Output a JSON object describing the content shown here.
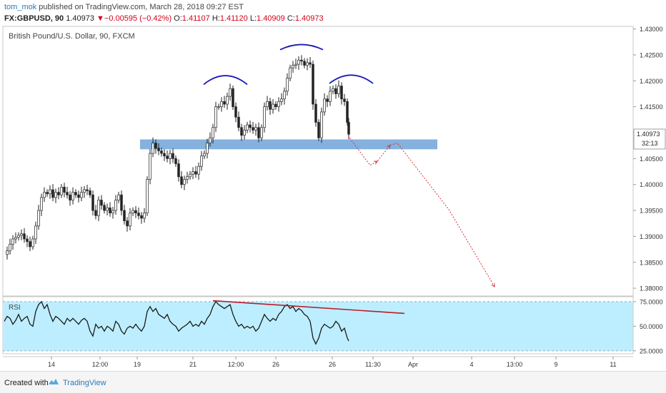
{
  "header": {
    "user": "tom_mok",
    "published_text": " published on TradingView.com, March 28, 2018 09:27 EST",
    "symbol": "FX:GBPUSD, 90",
    "last": "1.40973",
    "change_arrow": "▼",
    "change": "−0.00595 (−0.42%)",
    "open_label": "O:",
    "open": "1.41107",
    "high_label": "H:",
    "high": "1.41120",
    "low_label": "L:",
    "low": "1.40909",
    "close_label": "C:",
    "close": "1.40973"
  },
  "main_title": "British Pound/U.S. Dollar, 90, FXCM",
  "rsi_label": "RSI",
  "price_badge": "1.40973",
  "countdown": "32:13",
  "footer": {
    "created": "Created with",
    "brand": "TradingView"
  },
  "colors": {
    "support_zone": "#6fa3d8",
    "head_shoulders_arc": "#1a1ab8",
    "projection": "#e0303a",
    "rsi_fill": "#bdeeff",
    "divergence_line": "#b81c2a"
  },
  "chart_data": [
    {
      "type": "candlestick",
      "title": "British Pound/U.S. Dollar, 90, FXCM",
      "y_ticks": [
        "1.43000",
        "1.42500",
        "1.42000",
        "1.41500",
        "1.41000",
        "1.40500",
        "1.40000",
        "1.39500",
        "1.39000",
        "1.38500",
        "1.38000"
      ],
      "ylim": [
        1.3785,
        1.4305
      ],
      "x_ticks": [
        "14",
        "12:00",
        "19",
        "21",
        "12:00",
        "26",
        "26",
        "11:30",
        "Apr",
        "4",
        "13:00",
        "9",
        "11"
      ],
      "x_tick_values": [
        72,
        140,
        192,
        270,
        330,
        386,
        465,
        522,
        578,
        660,
        720,
        778,
        858
      ],
      "close_path": [
        [
          6,
          1.3865
        ],
        [
          10,
          1.3872
        ],
        [
          14,
          1.3885
        ],
        [
          18,
          1.3895
        ],
        [
          22,
          1.3898
        ],
        [
          26,
          1.3902
        ],
        [
          30,
          1.3905
        ],
        [
          34,
          1.3895
        ],
        [
          38,
          1.389
        ],
        [
          42,
          1.388
        ],
        [
          46,
          1.3895
        ],
        [
          50,
          1.392
        ],
        [
          54,
          1.395
        ],
        [
          58,
          1.3975
        ],
        [
          62,
          1.3985
        ],
        [
          66,
          1.3982
        ],
        [
          70,
          1.399
        ],
        [
          74,
          1.3975
        ],
        [
          78,
          1.3985
        ],
        [
          82,
          1.398
        ],
        [
          86,
          1.3995
        ],
        [
          90,
          1.3985
        ],
        [
          94,
          1.398
        ],
        [
          98,
          1.397
        ],
        [
          102,
          1.3985
        ],
        [
          106,
          1.398
        ],
        [
          110,
          1.3975
        ],
        [
          114,
          1.3985
        ],
        [
          118,
          1.399
        ],
        [
          122,
          1.3988
        ],
        [
          126,
          1.398
        ],
        [
          130,
          1.395
        ],
        [
          134,
          1.394
        ],
        [
          138,
          1.397
        ],
        [
          142,
          1.396
        ],
        [
          146,
          1.395
        ],
        [
          150,
          1.3955
        ],
        [
          154,
          1.3945
        ],
        [
          158,
          1.395
        ],
        [
          162,
          1.397
        ],
        [
          166,
          1.398
        ],
        [
          170,
          1.395
        ],
        [
          174,
          1.393
        ],
        [
          178,
          1.392
        ],
        [
          182,
          1.3945
        ],
        [
          186,
          1.395
        ],
        [
          190,
          1.3945
        ],
        [
          194,
          1.394
        ],
        [
          198,
          1.3935
        ],
        [
          202,
          1.3945
        ],
        [
          206,
          1.401
        ],
        [
          210,
          1.406
        ],
        [
          214,
          1.408
        ],
        [
          218,
          1.407
        ],
        [
          222,
          1.4065
        ],
        [
          226,
          1.406
        ],
        [
          230,
          1.4055
        ],
        [
          234,
          1.405
        ],
        [
          238,
          1.406
        ],
        [
          242,
          1.405
        ],
        [
          246,
          1.404
        ],
        [
          250,
          1.4015
        ],
        [
          254,
          1.4
        ],
        [
          258,
          1.401
        ],
        [
          262,
          1.4015
        ],
        [
          266,
          1.402
        ],
        [
          270,
          1.4025
        ],
        [
          274,
          1.402
        ],
        [
          278,
          1.4035
        ],
        [
          282,
          1.4055
        ],
        [
          286,
          1.406
        ],
        [
          290,
          1.408
        ],
        [
          294,
          1.409
        ],
        [
          298,
          1.411
        ],
        [
          302,
          1.415
        ],
        [
          306,
          1.415
        ],
        [
          310,
          1.416
        ],
        [
          314,
          1.4155
        ],
        [
          318,
          1.417
        ],
        [
          322,
          1.4185
        ],
        [
          326,
          1.415
        ],
        [
          330,
          1.413
        ],
        [
          334,
          1.411
        ],
        [
          338,
          1.4095
        ],
        [
          342,
          1.4105
        ],
        [
          346,
          1.4115
        ],
        [
          350,
          1.411
        ],
        [
          354,
          1.4105
        ],
        [
          358,
          1.411
        ],
        [
          362,
          1.409
        ],
        [
          366,
          1.411
        ],
        [
          370,
          1.415
        ],
        [
          374,
          1.416
        ],
        [
          378,
          1.4145
        ],
        [
          382,
          1.4155
        ],
        [
          386,
          1.415
        ],
        [
          390,
          1.416
        ],
        [
          394,
          1.4165
        ],
        [
          398,
          1.418
        ],
        [
          402,
          1.4205
        ],
        [
          406,
          1.4225
        ],
        [
          410,
          1.423
        ],
        [
          414,
          1.4232
        ],
        [
          418,
          1.424
        ],
        [
          422,
          1.4238
        ],
        [
          426,
          1.423
        ],
        [
          430,
          1.4235
        ],
        [
          434,
          1.4232
        ],
        [
          438,
          1.4155
        ],
        [
          442,
          1.412
        ],
        [
          446,
          1.409
        ],
        [
          450,
          1.414
        ],
        [
          454,
          1.4165
        ],
        [
          458,
          1.416
        ],
        [
          462,
          1.418
        ],
        [
          466,
          1.4185
        ],
        [
          470,
          1.4175
        ],
        [
          474,
          1.419
        ],
        [
          478,
          1.4165
        ],
        [
          482,
          1.416
        ],
        [
          486,
          1.412
        ],
        [
          488,
          1.4097
        ]
      ],
      "support_zone": {
        "y_top": 1.4087,
        "y_bottom": 1.4068,
        "x_from": 196,
        "x_to": 612
      },
      "head_shoulders_arcs": [
        {
          "x0": 285,
          "x1": 346,
          "y_base": 1.4193,
          "y_peak": 1.421
        },
        {
          "x0": 392,
          "x1": 452,
          "y_base": 1.426,
          "y_peak": 1.427
        },
        {
          "x0": 461,
          "x1": 522,
          "y_base": 1.4195,
          "y_peak": 1.4211
        }
      ],
      "projection_path": [
        [
          487,
          1.4094
        ],
        [
          518,
          1.4037
        ],
        [
          528,
          1.4045
        ],
        [
          546,
          1.4076
        ],
        [
          556,
          1.408
        ],
        [
          628,
          1.3952
        ],
        [
          692,
          1.3803
        ]
      ]
    },
    {
      "type": "line",
      "title": "RSI",
      "y_ticks": [
        "75.0000",
        "50.0000",
        "25.0000"
      ],
      "ylim": [
        22,
        80
      ],
      "band": [
        25,
        75
      ],
      "values": [
        [
          6,
          55
        ],
        [
          10,
          60
        ],
        [
          14,
          58
        ],
        [
          18,
          52
        ],
        [
          22,
          56
        ],
        [
          26,
          62
        ],
        [
          30,
          55
        ],
        [
          34,
          58
        ],
        [
          38,
          60
        ],
        [
          42,
          52
        ],
        [
          46,
          50
        ],
        [
          50,
          65
        ],
        [
          54,
          72
        ],
        [
          58,
          75
        ],
        [
          62,
          68
        ],
        [
          66,
          72
        ],
        [
          70,
          62
        ],
        [
          74,
          55
        ],
        [
          78,
          60
        ],
        [
          82,
          58
        ],
        [
          86,
          55
        ],
        [
          90,
          52
        ],
        [
          94,
          58
        ],
        [
          98,
          55
        ],
        [
          102,
          58
        ],
        [
          106,
          55
        ],
        [
          110,
          52
        ],
        [
          114,
          56
        ],
        [
          118,
          58
        ],
        [
          122,
          55
        ],
        [
          126,
          45
        ],
        [
          130,
          40
        ],
        [
          134,
          52
        ],
        [
          138,
          48
        ],
        [
          142,
          50
        ],
        [
          146,
          45
        ],
        [
          150,
          50
        ],
        [
          154,
          48
        ],
        [
          158,
          45
        ],
        [
          162,
          55
        ],
        [
          166,
          52
        ],
        [
          170,
          45
        ],
        [
          174,
          42
        ],
        [
          178,
          48
        ],
        [
          182,
          50
        ],
        [
          186,
          48
        ],
        [
          190,
          52
        ],
        [
          194,
          48
        ],
        [
          198,
          45
        ],
        [
          202,
          50
        ],
        [
          206,
          65
        ],
        [
          210,
          70
        ],
        [
          214,
          65
        ],
        [
          218,
          68
        ],
        [
          222,
          62
        ],
        [
          226,
          60
        ],
        [
          230,
          58
        ],
        [
          234,
          62
        ],
        [
          238,
          55
        ],
        [
          242,
          52
        ],
        [
          246,
          50
        ],
        [
          250,
          45
        ],
        [
          254,
          48
        ],
        [
          258,
          50
        ],
        [
          262,
          52
        ],
        [
          266,
          55
        ],
        [
          270,
          50
        ],
        [
          274,
          52
        ],
        [
          278,
          50
        ],
        [
          282,
          55
        ],
        [
          286,
          52
        ],
        [
          290,
          58
        ],
        [
          294,
          62
        ],
        [
          298,
          70
        ],
        [
          302,
          75
        ],
        [
          306,
          72
        ],
        [
          310,
          70
        ],
        [
          314,
          68
        ],
        [
          318,
          70
        ],
        [
          322,
          72
        ],
        [
          326,
          62
        ],
        [
          330,
          55
        ],
        [
          334,
          50
        ],
        [
          338,
          52
        ],
        [
          342,
          48
        ],
        [
          346,
          50
        ],
        [
          350,
          48
        ],
        [
          354,
          50
        ],
        [
          358,
          45
        ],
        [
          362,
          48
        ],
        [
          366,
          55
        ],
        [
          370,
          62
        ],
        [
          374,
          58
        ],
        [
          378,
          55
        ],
        [
          382,
          58
        ],
        [
          386,
          56
        ],
        [
          390,
          62
        ],
        [
          394,
          65
        ],
        [
          398,
          70
        ],
        [
          402,
          72
        ],
        [
          406,
          68
        ],
        [
          410,
          70
        ],
        [
          414,
          65
        ],
        [
          418,
          68
        ],
        [
          422,
          66
        ],
        [
          426,
          62
        ],
        [
          430,
          60
        ],
        [
          434,
          55
        ],
        [
          438,
          38
        ],
        [
          442,
          32
        ],
        [
          446,
          38
        ],
        [
          450,
          48
        ],
        [
          454,
          52
        ],
        [
          458,
          50
        ],
        [
          462,
          48
        ],
        [
          466,
          50
        ],
        [
          470,
          55
        ],
        [
          474,
          52
        ],
        [
          478,
          45
        ],
        [
          482,
          48
        ],
        [
          486,
          38
        ],
        [
          488,
          35
        ]
      ],
      "divergence_line": [
        [
          298,
          76
        ],
        [
          566,
          63
        ]
      ]
    }
  ]
}
